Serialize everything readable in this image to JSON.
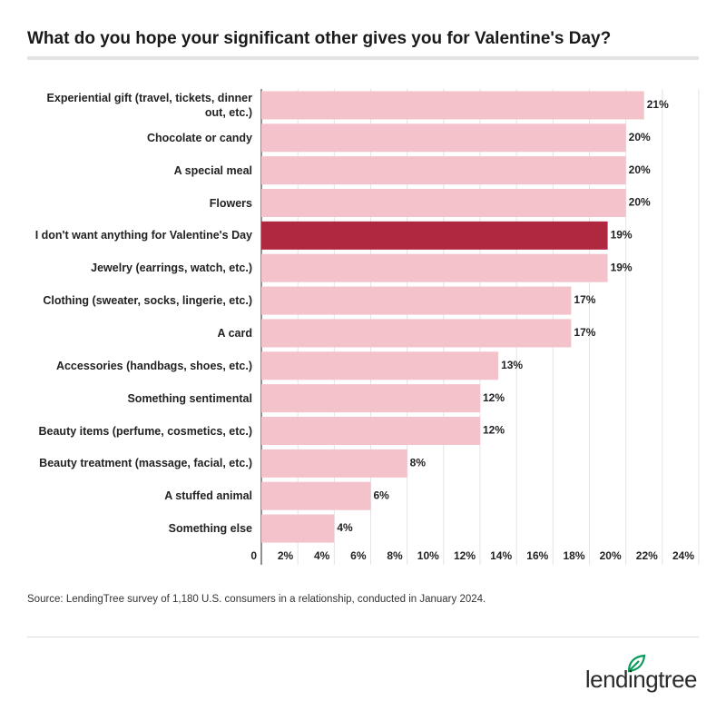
{
  "chart_data": {
    "type": "bar",
    "orientation": "horizontal",
    "title": "What do you hope your significant other gives you for Valentine's Day?",
    "categories": [
      "Experiential gift (travel, tickets, dinner out, etc.)",
      "Chocolate or candy",
      "A special meal",
      "Flowers",
      "I don't want anything for Valentine's Day",
      "Jewelry (earrings, watch, etc.)",
      "Clothing (sweater, socks, lingerie, etc.)",
      "A card",
      "Accessories (handbags, shoes, etc.)",
      "Something sentimental",
      "Beauty items (perfume, cosmetics, etc.)",
      "Beauty treatment (massage, facial, etc.)",
      "A stuffed animal",
      "Something else"
    ],
    "values": [
      21,
      20,
      20,
      20,
      19,
      19,
      17,
      17,
      13,
      12,
      12,
      8,
      6,
      4
    ],
    "value_labels": [
      "21%",
      "20%",
      "20%",
      "20%",
      "19%",
      "19%",
      "17%",
      "17%",
      "13%",
      "12%",
      "12%",
      "8%",
      "6%",
      "4%"
    ],
    "colors": [
      "#f4c2cb",
      "#f4c2cb",
      "#f4c2cb",
      "#f4c2cb",
      "#b0283f",
      "#f4c2cb",
      "#f4c2cb",
      "#f4c2cb",
      "#f4c2cb",
      "#f4c2cb",
      "#f4c2cb",
      "#f4c2cb",
      "#f4c2cb",
      "#f4c2cb"
    ],
    "xlim": [
      0,
      24
    ],
    "xticks": [
      0,
      {
        "value": 2,
        "label": "2%"
      },
      {
        "value": 4,
        "label": "4%"
      },
      {
        "value": 6,
        "label": "6%"
      },
      {
        "value": 8,
        "label": "8%"
      },
      {
        "value": 10,
        "label": "10%"
      },
      {
        "value": 12,
        "label": "12%"
      },
      {
        "value": 14,
        "label": "14%"
      },
      {
        "value": 16,
        "label": "16%"
      },
      {
        "value": 18,
        "label": "18%"
      },
      {
        "value": 20,
        "label": "20%"
      },
      {
        "value": 22,
        "label": "22%"
      },
      {
        "value": 24,
        "label": "24%"
      }
    ],
    "grid": true,
    "source": "Source: LendingTree survey of 1,180 U.S. consumers in a relationship, conducted in January 2024.",
    "logo": "lendingtree"
  }
}
